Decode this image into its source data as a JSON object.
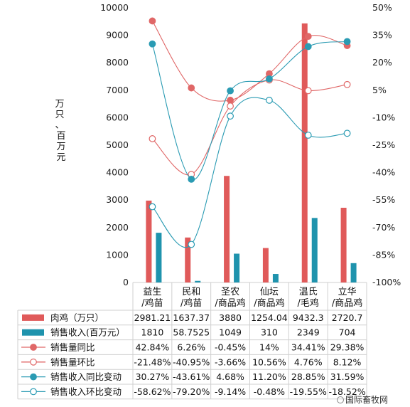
{
  "chart_data": {
    "type": "bar",
    "categories": [
      [
        "益生",
        "/鸡苗"
      ],
      [
        "民和",
        "/鸡苗"
      ],
      [
        "圣农",
        "/商品鸡"
      ],
      [
        "仙坛",
        "/商品鸡"
      ],
      [
        "温氏",
        "/毛鸡"
      ],
      [
        "立华",
        "/商品鸡"
      ]
    ],
    "ylabel_left": [
      "万只、",
      "百万元"
    ],
    "ylim_left": [
      0,
      10000
    ],
    "yticks_left": [
      "0",
      "1000",
      "2000",
      "3000",
      "4000",
      "5000",
      "6000",
      "7000",
      "8000",
      "9000",
      "10000"
    ],
    "ylim_right": [
      -100,
      50
    ],
    "yticks_right": [
      "-100%",
      "-85%",
      "-70%",
      "-55%",
      "-40%",
      "-25%",
      "-10%",
      "5%",
      "20%",
      "35%",
      "50%"
    ],
    "colors": {
      "bar_red": "#e05a5a",
      "bar_teal": "#1f93ad",
      "line_red": "#e06767",
      "line_teal": "#2a9bb3"
    },
    "series": [
      {
        "name": "肉鸡（万只）",
        "kind": "bar",
        "color": "#e05a5a",
        "axis": "left",
        "values": [
          2981.21,
          1637.37,
          3880,
          1254.04,
          9432.3,
          2720.7
        ],
        "labels": [
          "2981.21",
          "1637.37",
          "3880",
          "1254.04",
          "9432.3",
          "2720.7"
        ]
      },
      {
        "name": "销售收入(百万元）",
        "kind": "bar",
        "color": "#1f93ad",
        "axis": "left",
        "values": [
          1810,
          58.7525,
          1049,
          310,
          2349,
          704
        ],
        "labels": [
          "1810",
          "58.7525",
          "1049",
          "310",
          "2349",
          "704"
        ]
      },
      {
        "name": "销售量同比",
        "kind": "line",
        "marker": "filled",
        "color": "#e06767",
        "axis": "right",
        "values": [
          42.84,
          6.26,
          -0.45,
          14,
          34.41,
          29.38
        ],
        "labels": [
          "42.84%",
          "6.26%",
          "-0.45%",
          "14%",
          "34.41%",
          "29.38%"
        ]
      },
      {
        "name": "销售量环比",
        "kind": "line",
        "marker": "hollow",
        "color": "#e06767",
        "axis": "right",
        "values": [
          -21.48,
          -40.95,
          -3.66,
          10.56,
          4.76,
          8.12
        ],
        "labels": [
          "-21.48%",
          "-40.95%",
          "-3.66%",
          "10.56%",
          "4.76%",
          "8.12%"
        ]
      },
      {
        "name": "销售收入同比变动",
        "kind": "line",
        "marker": "filled",
        "color": "#2a9bb3",
        "axis": "right",
        "values": [
          30.27,
          -43.61,
          4.68,
          11.2,
          28.85,
          31.59
        ],
        "labels": [
          "30.27%",
          "-43.61%",
          "4.68%",
          "11.20%",
          "28.85%",
          "31.59%"
        ]
      },
      {
        "name": "销售收入环比变动",
        "kind": "line",
        "marker": "hollow",
        "color": "#2a9bb3",
        "axis": "right",
        "values": [
          -58.62,
          -79.2,
          -9.14,
          -0.48,
          -19.55,
          -18.52
        ],
        "labels": [
          "-58.62%",
          "-79.20%",
          "-9.14%",
          "-0.48%",
          "-19.55%",
          "-18.52%"
        ]
      }
    ]
  },
  "watermark": "国际畜牧网"
}
